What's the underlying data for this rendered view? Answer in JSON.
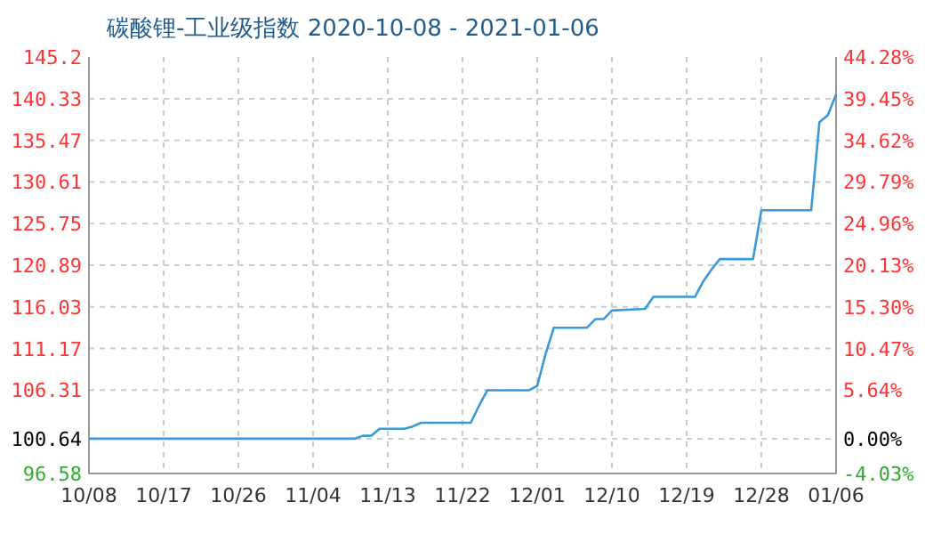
{
  "chart_data": {
    "type": "line",
    "title": "碳酸锂-工业级指数 2020-10-08 - 2021-01-06",
    "x": [
      "2020-10-08",
      "2020-11-09",
      "2020-11-10",
      "2020-11-11",
      "2020-11-12",
      "2020-11-15",
      "2020-11-16",
      "2020-11-17",
      "2020-11-23",
      "2020-11-24",
      "2020-11-25",
      "2020-11-30",
      "2020-12-01",
      "2020-12-02",
      "2020-12-03",
      "2020-12-07",
      "2020-12-08",
      "2020-12-09",
      "2020-12-10",
      "2020-12-14",
      "2020-12-15",
      "2020-12-20",
      "2020-12-21",
      "2020-12-22",
      "2020-12-23",
      "2020-12-27",
      "2020-12-28",
      "2021-01-03",
      "2021-01-04",
      "2021-01-05",
      "2021-01-06"
    ],
    "series": [
      {
        "color": "#3a9ad9",
        "values": [
          100.64,
          100.64,
          100.98,
          100.98,
          101.8,
          101.8,
          102.07,
          102.5,
          102.5,
          104.5,
          106.3,
          106.3,
          106.8,
          110.5,
          113.6,
          113.6,
          114.6,
          114.6,
          115.6,
          115.8,
          117.2,
          117.2,
          119.0,
          120.4,
          121.6,
          121.6,
          127.3,
          127.3,
          137.6,
          138.4,
          140.8
        ]
      }
    ],
    "xlim": [
      "2020-10-08",
      "2021-01-06"
    ],
    "xticks": [
      {
        "value": "2020-10-08",
        "label": "10/08"
      },
      {
        "value": "2020-10-17",
        "label": "10/17"
      },
      {
        "value": "2020-10-26",
        "label": "10/26"
      },
      {
        "value": "2020-11-04",
        "label": "11/04"
      },
      {
        "value": "2020-11-13",
        "label": "11/13"
      },
      {
        "value": "2020-11-22",
        "label": "11/22"
      },
      {
        "value": "2020-12-01",
        "label": "12/01"
      },
      {
        "value": "2020-12-10",
        "label": "12/10"
      },
      {
        "value": "2020-12-19",
        "label": "12/19"
      },
      {
        "value": "2020-12-28",
        "label": "12/28"
      },
      {
        "value": "2021-01-06",
        "label": "01/06"
      }
    ],
    "ylim": [
      96.58,
      145.2
    ],
    "yticks": [
      96.58,
      100.64,
      106.31,
      111.17,
      116.03,
      120.89,
      125.75,
      130.61,
      135.47,
      140.33,
      145.2
    ],
    "y2lim": [
      -4.03,
      44.28
    ],
    "y2ticks": [
      {
        "value": -4.03,
        "label": "-4.03%"
      },
      {
        "value": 0,
        "label": "0.00%"
      },
      {
        "value": 5.64,
        "label": "5.64%"
      },
      {
        "value": 10.47,
        "label": "10.47%"
      },
      {
        "value": 15.3,
        "label": "15.30%"
      },
      {
        "value": 20.13,
        "label": "20.13%"
      },
      {
        "value": 24.96,
        "label": "24.96%"
      },
      {
        "value": 29.79,
        "label": "29.79%"
      },
      {
        "value": 34.62,
        "label": "34.62%"
      },
      {
        "value": 39.45,
        "label": "39.45%"
      },
      {
        "value": 44.28,
        "label": "44.28%"
      }
    ],
    "grid": true,
    "line_style": "solid"
  }
}
